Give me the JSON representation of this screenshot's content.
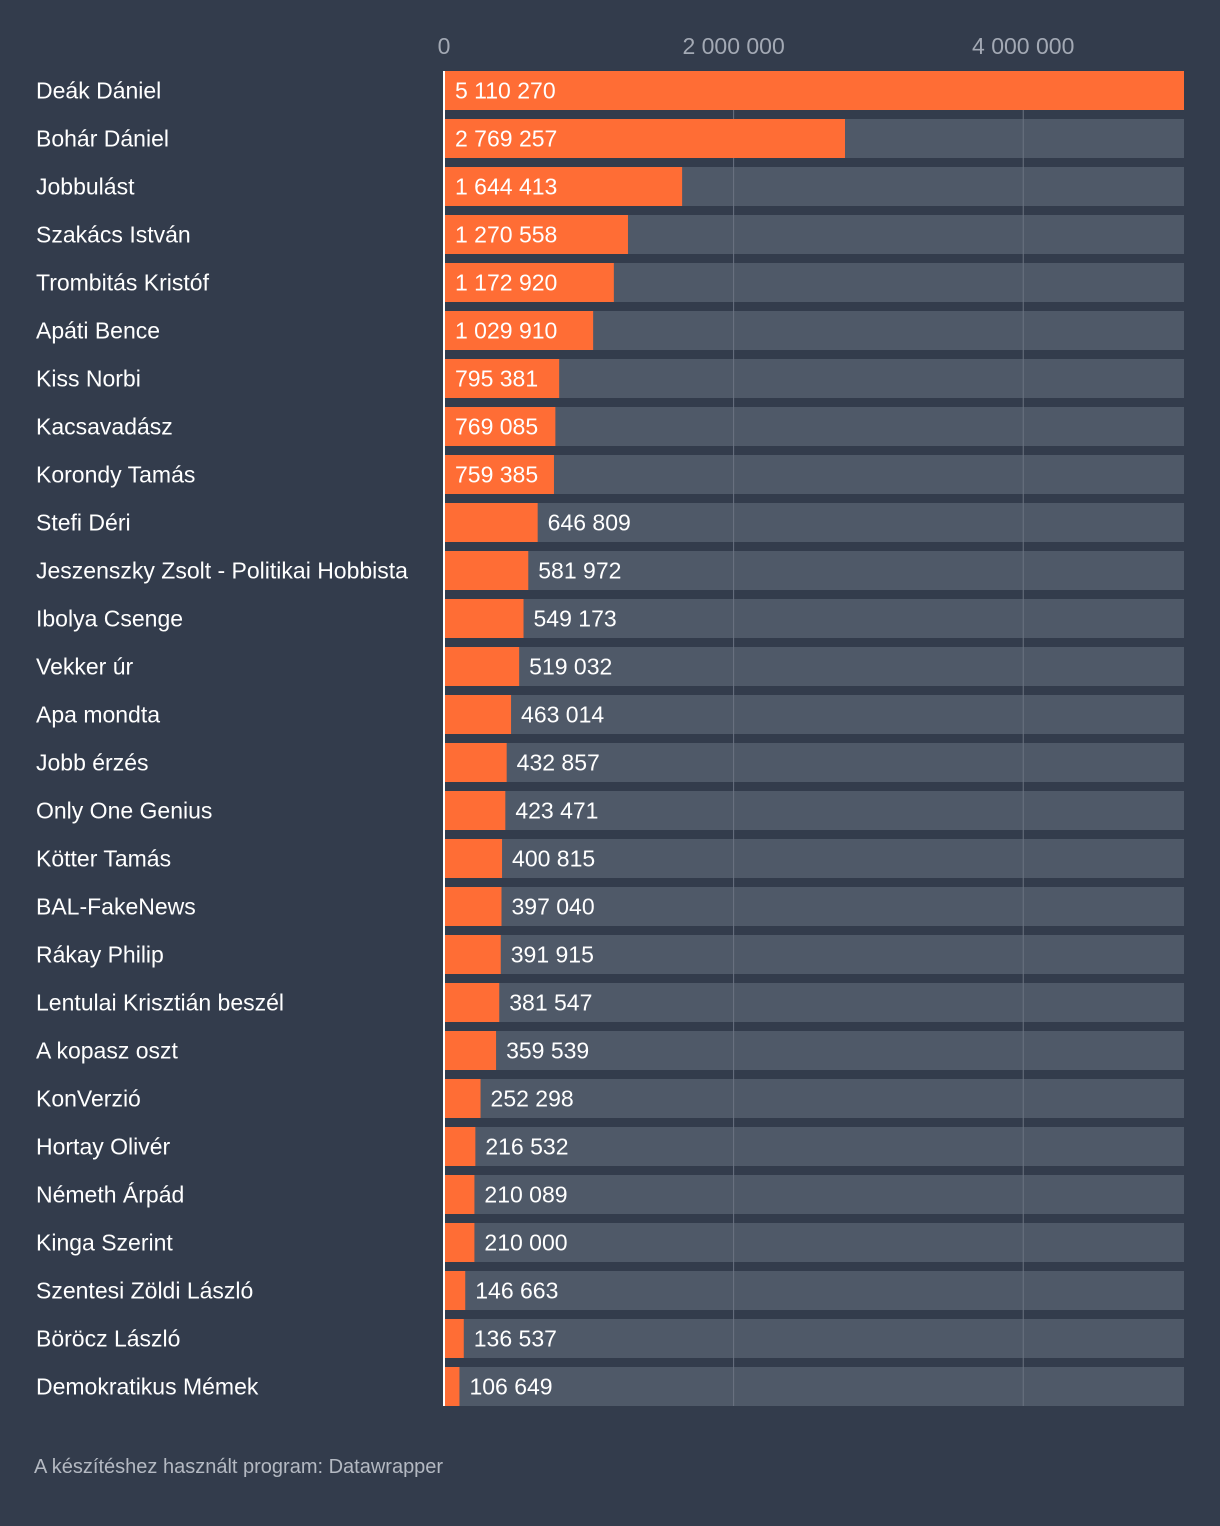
{
  "chart_data": {
    "type": "bar",
    "orientation": "horizontal",
    "title": "",
    "xlabel": "",
    "ylabel": "",
    "xlim": [
      0,
      5110270
    ],
    "grid": true,
    "xticks": [
      {
        "value": 0,
        "label": "0"
      },
      {
        "value": 2000000,
        "label": "2 000 000"
      },
      {
        "value": 4000000,
        "label": "4 000 000"
      }
    ],
    "colors": {
      "bar": "#ff6d35",
      "track": "#4f5968",
      "background": "#333c4c",
      "gridline": "#6b7382",
      "label": "#ffffff",
      "tick": "#a3a9b4"
    },
    "categories": [
      "Deák Dániel",
      "Bohár Dániel",
      "Jobbulást",
      "Szakács István",
      "Trombitás Kristóf",
      "Apáti Bence",
      "Kiss Norbi",
      "Kacsavadász",
      "Korondy Tamás",
      "Stefi Déri",
      "Jeszenszky Zsolt - Politikai Hobbista",
      "Ibolya Csenge",
      "Vekker úr",
      "Apa mondta",
      "Jobb érzés",
      "Only One Genius",
      "Kötter Tamás",
      "BAL-FakeNews",
      "Rákay Philip",
      "Lentulai Krisztián beszél",
      "A kopasz oszt",
      "KonVerzió",
      "Hortay Olivér",
      "Németh Árpád",
      "Kinga Szerint",
      "Szentesi Zöldi László",
      "Böröcz László",
      "Demokratikus Mémek"
    ],
    "values": [
      5110270,
      2769257,
      1644413,
      1270558,
      1172920,
      1029910,
      795381,
      769085,
      759385,
      646809,
      581972,
      549173,
      519032,
      463014,
      432857,
      423471,
      400815,
      397040,
      391915,
      381547,
      359539,
      252298,
      216532,
      210089,
      210000,
      146663,
      136537,
      106649
    ],
    "value_labels": [
      "5 110 270",
      "2 769 257",
      "1 644 413",
      "1 270 558",
      "1 172 920",
      "1 029 910",
      "795 381",
      "769 085",
      "759 385",
      "646 809",
      "581 972",
      "549 173",
      "519 032",
      "463 014",
      "432 857",
      "423 471",
      "400 815",
      "397 040",
      "391 915",
      "381 547",
      "359 539",
      "252 298",
      "216 532",
      "210 089",
      "210 000",
      "146 663",
      "136 537",
      "106 649"
    ]
  },
  "footer": {
    "text": "A készítéshez használt program: Datawrapper"
  }
}
